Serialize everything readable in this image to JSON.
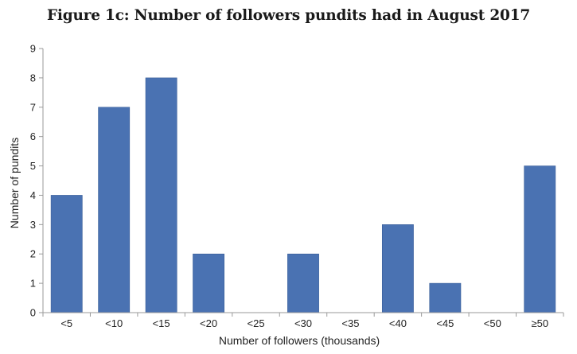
{
  "chart_data": {
    "type": "bar",
    "title": "Figure 1c: Number of followers pundits had in August 2017",
    "xlabel": "Number of followers (thousands)",
    "ylabel": "Number of pundits",
    "categories": [
      "<5",
      "<10",
      "<15",
      "<20",
      "<25",
      "<30",
      "<35",
      "<40",
      "<45",
      "<50",
      "≥50"
    ],
    "values": [
      4,
      7,
      8,
      2,
      0,
      2,
      0,
      3,
      1,
      0,
      5
    ],
    "ylim": [
      0,
      9
    ],
    "yticks": [
      "0",
      "1",
      "2",
      "3",
      "4",
      "5",
      "6",
      "7",
      "8",
      "9"
    ],
    "grid": false,
    "bar_color": "#4a72b2"
  }
}
